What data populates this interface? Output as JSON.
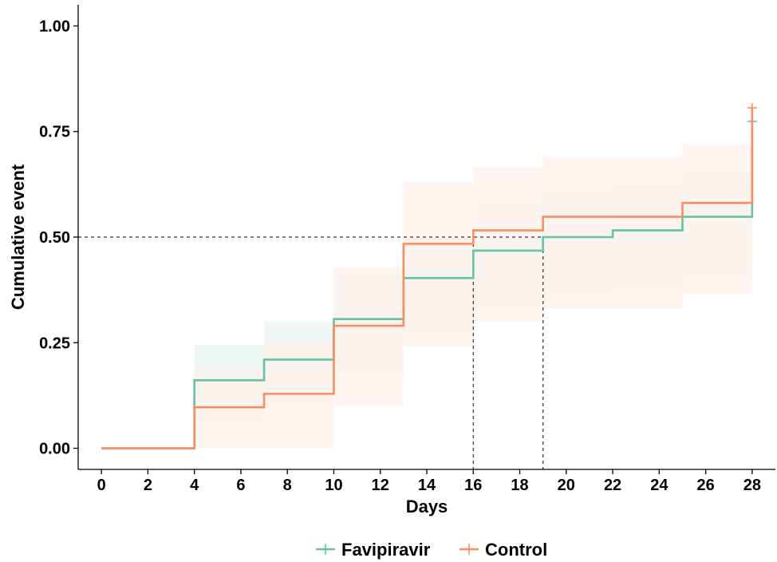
{
  "chart_data": {
    "type": "line",
    "step": true,
    "xlabel": "Days",
    "ylabel": "Cumulative event",
    "xlim": [
      -1,
      29
    ],
    "ylim": [
      -0.05,
      1.05
    ],
    "xticks": [
      0,
      2,
      4,
      6,
      8,
      10,
      12,
      14,
      16,
      18,
      20,
      22,
      24,
      26,
      28
    ],
    "xtick_labels": [
      "0",
      "2",
      "4",
      "6",
      "8",
      "10",
      "12",
      "14",
      "16",
      "18",
      "20",
      "22",
      "24",
      "26",
      "28"
    ],
    "yticks": [
      0,
      0.25,
      0.5,
      0.75,
      1.0
    ],
    "ytick_labels": [
      "0.00",
      "0.25",
      "0.50",
      "0.75",
      "1.00"
    ],
    "grid": false,
    "legend_position": "bottom",
    "median_reference": {
      "y": 0.5,
      "x_values": [
        16,
        19
      ],
      "style": "dashed"
    },
    "series": [
      {
        "name": "Favipiravir",
        "color": "#66C2A5",
        "x": [
          0,
          4,
          7,
          10,
          13,
          16,
          19,
          22,
          25,
          28,
          28
        ],
        "y": [
          0,
          0.161,
          0.21,
          0.306,
          0.403,
          0.468,
          0.5,
          0.516,
          0.548,
          0.548,
          0.774
        ],
        "ci_color": "#EAF5F1",
        "ci_lower": [
          0,
          0.065,
          0.097,
          0.177,
          0.274,
          0.33,
          0.355,
          0.37,
          0.4,
          0.4,
          0.4
        ],
        "ci_upper": [
          0,
          0.245,
          0.3,
          0.41,
          0.5,
          0.58,
          0.61,
          0.625,
          0.655,
          0.655,
          0.655
        ],
        "censor_marks": [
          {
            "x": 28,
            "y": 0.774
          }
        ]
      },
      {
        "name": "Control",
        "color": "#FC8D62",
        "x": [
          0,
          4,
          7,
          10,
          13,
          16,
          19,
          22,
          25,
          28,
          28
        ],
        "y": [
          0,
          0.097,
          0.129,
          0.29,
          0.484,
          0.516,
          0.548,
          0.548,
          0.581,
          0.581,
          0.806
        ],
        "ci_color": "#FEF1EB",
        "ci_lower": [
          0,
          0,
          0,
          0.1,
          0.24,
          0.3,
          0.33,
          0.33,
          0.365,
          0.365,
          0.365
        ],
        "ci_upper": [
          0,
          0.19,
          0.25,
          0.43,
          0.63,
          0.665,
          0.69,
          0.69,
          0.72,
          0.72,
          0.72
        ],
        "censor_marks": [
          {
            "x": 28,
            "y": 0.806
          }
        ]
      }
    ]
  }
}
